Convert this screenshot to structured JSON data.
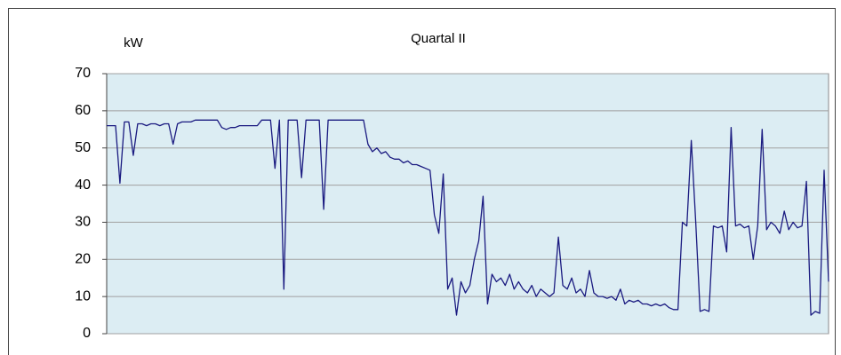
{
  "chart_data": {
    "type": "line",
    "title": "Quartal II",
    "y_label": "kW",
    "series": [
      {
        "name": "kW",
        "color": "#1a1a80",
        "values": [
          56,
          56,
          56,
          40.5,
          57,
          57,
          48,
          56.5,
          56.5,
          56,
          56.5,
          56.5,
          56,
          56.5,
          56.5,
          51,
          56.5,
          57,
          57,
          57,
          57.5,
          57.5,
          57.5,
          57.5,
          57.5,
          57.5,
          55.5,
          55,
          55.5,
          55.5,
          56,
          56,
          56,
          56,
          56,
          57.5,
          57.5,
          57.5,
          44.5,
          57.5,
          12,
          57.5,
          57.5,
          57.5,
          42,
          57.5,
          57.5,
          57.5,
          57.5,
          33.5,
          57.5,
          57.5,
          57.5,
          57.5,
          57.5,
          57.5,
          57.5,
          57.5,
          57.5,
          51,
          49,
          50,
          48.5,
          49,
          47.5,
          47,
          47,
          46,
          46.5,
          45.5,
          45.5,
          45,
          44.5,
          44,
          32,
          27,
          43,
          12,
          15,
          5,
          14,
          11,
          13,
          20,
          25,
          37,
          8,
          16,
          14,
          15,
          13,
          16,
          12,
          14,
          12,
          11,
          13,
          10,
          12,
          11,
          10,
          11,
          26,
          13,
          12,
          15,
          11,
          12,
          10,
          17,
          11,
          10,
          10,
          9.5,
          10,
          9,
          12,
          8,
          9,
          8.5,
          9,
          8,
          8,
          7.5,
          8,
          7.5,
          8,
          7,
          6.5,
          6.5,
          30,
          29,
          52,
          30,
          6,
          6.5,
          6,
          29,
          28.5,
          29,
          22,
          55.5,
          29,
          29.5,
          28.5,
          29,
          20,
          29,
          55,
          28,
          30,
          29,
          27,
          33,
          28,
          30,
          28.5,
          29,
          41,
          5,
          6,
          5.5,
          44,
          14
        ]
      }
    ],
    "ylim": [
      0,
      70
    ],
    "yticks": [
      0,
      10,
      20,
      30,
      40,
      50,
      60,
      70
    ],
    "grid": true,
    "plot_background": "#dcedf3"
  }
}
